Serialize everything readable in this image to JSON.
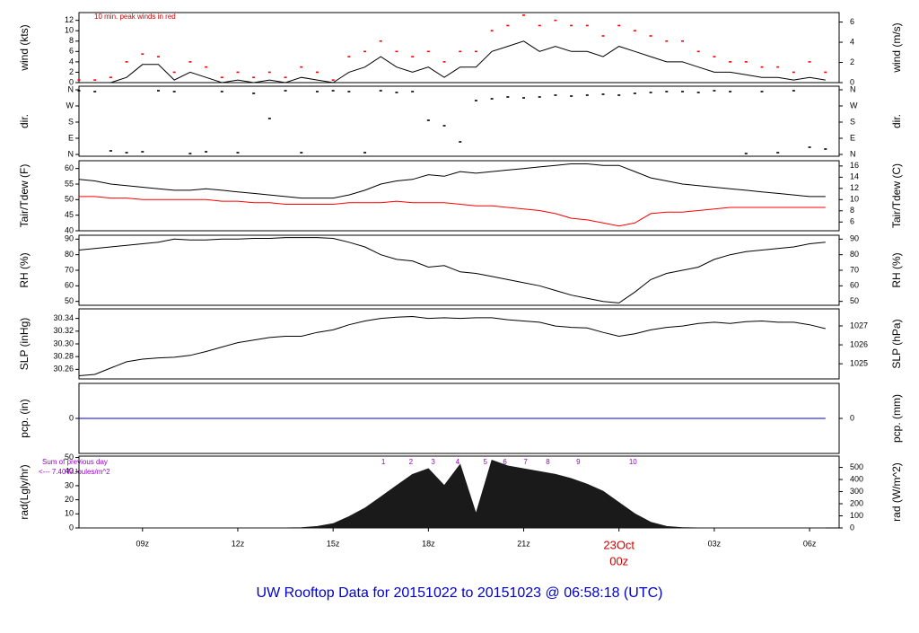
{
  "title": "UW Rooftop Data for 20151022  to  20151023 @ 06:58:18  (UTC)",
  "time": {
    "x": [
      7,
      7.5,
      8,
      8.5,
      9,
      9.5,
      10,
      10.5,
      11,
      11.5,
      12,
      12.5,
      13,
      13.5,
      14,
      14.5,
      15,
      15.5,
      16,
      16.5,
      17,
      17.5,
      18,
      18.5,
      19,
      19.5,
      20,
      20.5,
      21,
      21.5,
      22,
      22.5,
      23,
      23.5,
      24,
      24.5,
      25,
      25.5,
      26,
      26.5,
      27,
      27.5,
      28,
      28.5,
      29,
      29.5,
      30,
      30.5
    ],
    "xlim": [
      7,
      30.93
    ],
    "xticks": [
      {
        "value": 9,
        "label": "09z"
      },
      {
        "value": 12,
        "label": "12z"
      },
      {
        "value": 15,
        "label": "15z"
      },
      {
        "value": 18,
        "label": "18z"
      },
      {
        "value": 21,
        "label": "21z"
      },
      {
        "value": 24,
        "label": "00z"
      },
      {
        "value": 27,
        "label": "03z"
      },
      {
        "value": 30,
        "label": "06z"
      }
    ],
    "date_label": "23Oct",
    "date_tick": 24
  },
  "chart_data": [
    {
      "type": "line",
      "ylabel": "wind (kts)",
      "y2label": "wind (m/s)",
      "annotation": "10 min. peak winds in red",
      "ylim": [
        0,
        13.5
      ],
      "yticks": [
        0,
        2,
        4,
        6,
        8,
        10,
        12
      ],
      "y2lim": [
        0,
        6.94
      ],
      "y2ticks": [
        0,
        2,
        4,
        6
      ],
      "series": [
        {
          "color": "#000000",
          "style": "line",
          "values": [
            0,
            0,
            0,
            1,
            3.5,
            3.5,
            0.5,
            2,
            1,
            0,
            0.5,
            0,
            0.5,
            0,
            1,
            0.5,
            0,
            2,
            3,
            5,
            3,
            2,
            3,
            1,
            3,
            3,
            6,
            7,
            8,
            6,
            7,
            6,
            6,
            5,
            7,
            6,
            5,
            4,
            4,
            3,
            2,
            2,
            1.5,
            1,
            1,
            0.5,
            1,
            0.5
          ]
        },
        {
          "color": "#ff0000",
          "style": "points",
          "values": [
            0.5,
            0.5,
            1,
            4,
            5.5,
            5,
            2,
            4,
            3,
            1,
            2,
            1,
            2,
            1,
            3,
            2,
            0.5,
            5,
            6,
            8,
            6,
            5,
            6,
            4,
            6,
            6,
            10,
            11,
            13,
            11,
            12,
            11,
            11,
            9,
            11,
            10,
            9,
            8,
            8,
            6,
            5,
            4,
            4,
            3,
            3,
            2,
            4,
            2
          ]
        }
      ]
    },
    {
      "type": "scatter",
      "ylabel": "dir.",
      "y2label": "dir.",
      "ylim": [
        -10,
        380
      ],
      "yticks": [
        {
          "value": 0,
          "label": "N"
        },
        {
          "value": 90,
          "label": "E"
        },
        {
          "value": 180,
          "label": "S"
        },
        {
          "value": 270,
          "label": "W"
        },
        {
          "value": 360,
          "label": "N"
        }
      ],
      "y2lim": [
        -10,
        380
      ],
      "y2ticks": [
        {
          "value": 0,
          "label": "N"
        },
        {
          "value": 90,
          "label": "E"
        },
        {
          "value": 180,
          "label": "S"
        },
        {
          "value": 270,
          "label": "W"
        },
        {
          "value": 360,
          "label": "N"
        }
      ],
      "series": [
        {
          "color": "#000000",
          "style": "points",
          "values": [
            355,
            350,
            20,
            10,
            15,
            355,
            350,
            5,
            15,
            350,
            10,
            340,
            200,
            355,
            10,
            350,
            355,
            350,
            10,
            355,
            345,
            350,
            190,
            160,
            70,
            300,
            310,
            320,
            315,
            320,
            330,
            325,
            330,
            335,
            330,
            340,
            345,
            350,
            350,
            345,
            355,
            350,
            5,
            350,
            10,
            355,
            40,
            30
          ]
        }
      ]
    },
    {
      "type": "line",
      "ylabel": "Tair/Tdew (F)",
      "y2label": "Tair/Tdew (C)",
      "ylim": [
        40,
        62.5
      ],
      "yticks": [
        40,
        45,
        50,
        55,
        60
      ],
      "y2lim": [
        4.44,
        16.94
      ],
      "y2ticks": [
        6,
        8,
        10,
        12,
        14,
        16
      ],
      "series": [
        {
          "color": "#000000",
          "style": "line",
          "values": [
            56.5,
            56,
            55,
            54.5,
            54,
            53.5,
            53,
            53,
            53.5,
            53,
            52.5,
            52,
            51.5,
            51,
            50.5,
            50.5,
            50.5,
            51.5,
            53,
            55,
            56,
            56.5,
            58,
            57.5,
            59,
            58.5,
            59,
            59.5,
            60,
            60.5,
            61,
            61.5,
            61.5,
            61,
            61,
            59,
            57,
            56,
            55,
            54.5,
            54,
            53.5,
            53,
            52.5,
            52,
            51.5,
            51,
            51
          ]
        },
        {
          "color": "#ff0000",
          "style": "line",
          "values": [
            51,
            51,
            50.5,
            50.5,
            50,
            50,
            50,
            50,
            50,
            49.5,
            49.5,
            49,
            49,
            48.5,
            48.5,
            48.5,
            48.5,
            49,
            49,
            49,
            49.5,
            49,
            49,
            49,
            48.5,
            48,
            48,
            47.5,
            47,
            46.5,
            45.5,
            44,
            43.5,
            42.5,
            41.5,
            42.5,
            45.5,
            46,
            46,
            46.5,
            47,
            47.5,
            47.5,
            47.5,
            47.5,
            47.5,
            47.5,
            47.5
          ]
        }
      ]
    },
    {
      "type": "line",
      "ylabel": "RH (%)",
      "y2label": "RH (%)",
      "ylim": [
        47.5,
        92.5
      ],
      "yticks": [
        50,
        60,
        70,
        80,
        90
      ],
      "y2lim": [
        47.5,
        92.5
      ],
      "y2ticks": [
        50,
        60,
        70,
        80,
        90
      ],
      "series": [
        {
          "color": "#000000",
          "style": "line",
          "values": [
            83,
            84,
            85,
            86,
            87,
            88,
            90,
            89.5,
            89.5,
            90,
            90,
            90.5,
            90.5,
            91,
            91,
            91,
            90.5,
            88,
            85,
            80,
            77,
            76,
            72,
            73,
            69,
            68,
            66,
            64,
            62,
            60,
            57,
            54,
            52,
            50,
            49,
            56,
            64,
            68,
            70,
            72,
            77,
            80,
            82,
            83,
            84,
            85,
            87,
            88
          ]
        }
      ]
    },
    {
      "type": "line",
      "ylabel": "SLP (inHg)",
      "y2label": "SLP (hPa)",
      "ylim": [
        30.245,
        30.355
      ],
      "yticks": [
        30.26,
        30.28,
        {
          "value": 30.3,
          "label": "30.30"
        },
        30.32,
        30.34
      ],
      "y2lim": [
        1024.2,
        1027.9
      ],
      "y2ticks": [
        1025,
        1026,
        1027
      ],
      "series": [
        {
          "color": "#000000",
          "style": "line",
          "values": [
            30.25,
            30.252,
            30.262,
            30.272,
            30.276,
            30.278,
            30.279,
            30.282,
            30.288,
            30.295,
            30.302,
            30.306,
            30.31,
            30.312,
            30.312,
            30.318,
            30.322,
            30.33,
            30.336,
            30.34,
            30.342,
            30.343,
            30.34,
            30.341,
            30.34,
            30.341,
            30.341,
            30.338,
            30.336,
            30.334,
            30.328,
            30.326,
            30.325,
            30.318,
            30.312,
            30.316,
            30.322,
            30.326,
            30.328,
            30.332,
            30.334,
            30.332,
            30.335,
            30.336,
            30.334,
            30.334,
            30.33,
            30.324
          ]
        }
      ]
    },
    {
      "type": "line",
      "ylabel": "pcp. (in)",
      "y2label": "pcp. (mm)",
      "ylim": [
        -0.5,
        0.5
      ],
      "yticks": [
        0
      ],
      "y2lim": [
        -12.7,
        12.7
      ],
      "y2ticks": [
        0
      ],
      "series": [
        {
          "color": "#0000cc",
          "style": "line",
          "values": [
            0,
            0,
            0,
            0,
            0,
            0,
            0,
            0,
            0,
            0,
            0,
            0,
            0,
            0,
            0,
            0,
            0,
            0,
            0,
            0,
            0,
            0,
            0,
            0,
            0,
            0,
            0,
            0,
            0,
            0,
            0,
            0,
            0,
            0,
            0,
            0,
            0,
            0,
            0,
            0,
            0,
            0,
            0,
            0,
            0,
            0,
            0,
            0
          ]
        }
      ]
    },
    {
      "type": "area",
      "ylabel": "rad(Lgly/hr)",
      "y2label": "rad (W/m^2)",
      "annotations": [
        "Sum of previous day",
        "<--- 7.40 MJoules/m^2"
      ],
      "ylim": [
        0,
        51
      ],
      "yticks": [
        0,
        10,
        20,
        30,
        40,
        50
      ],
      "y2lim": [
        0,
        593
      ],
      "y2ticks": [
        0,
        100,
        200,
        300,
        400,
        500
      ],
      "markers": {
        "color": "#9900cc",
        "x": [
          16.58,
          17.45,
          18.15,
          18.92,
          19.79,
          20.41,
          21.06,
          21.76,
          22.72,
          24.44
        ],
        "labels": [
          1,
          2,
          3,
          4,
          5,
          6,
          7,
          8,
          9,
          10
        ]
      },
      "series": [
        {
          "color": "#1a1a1a",
          "style": "area",
          "values": [
            0,
            0,
            0,
            0,
            0,
            0,
            0,
            0,
            0,
            0,
            0,
            0,
            0,
            0,
            0.2,
            1,
            3,
            8,
            14,
            22,
            30,
            38,
            42,
            30,
            45,
            10,
            48,
            44,
            42,
            40,
            38,
            35,
            31,
            26,
            18,
            10,
            4,
            1,
            0.2,
            0,
            0,
            0,
            0,
            0,
            0,
            0,
            0,
            0
          ]
        }
      ]
    }
  ]
}
